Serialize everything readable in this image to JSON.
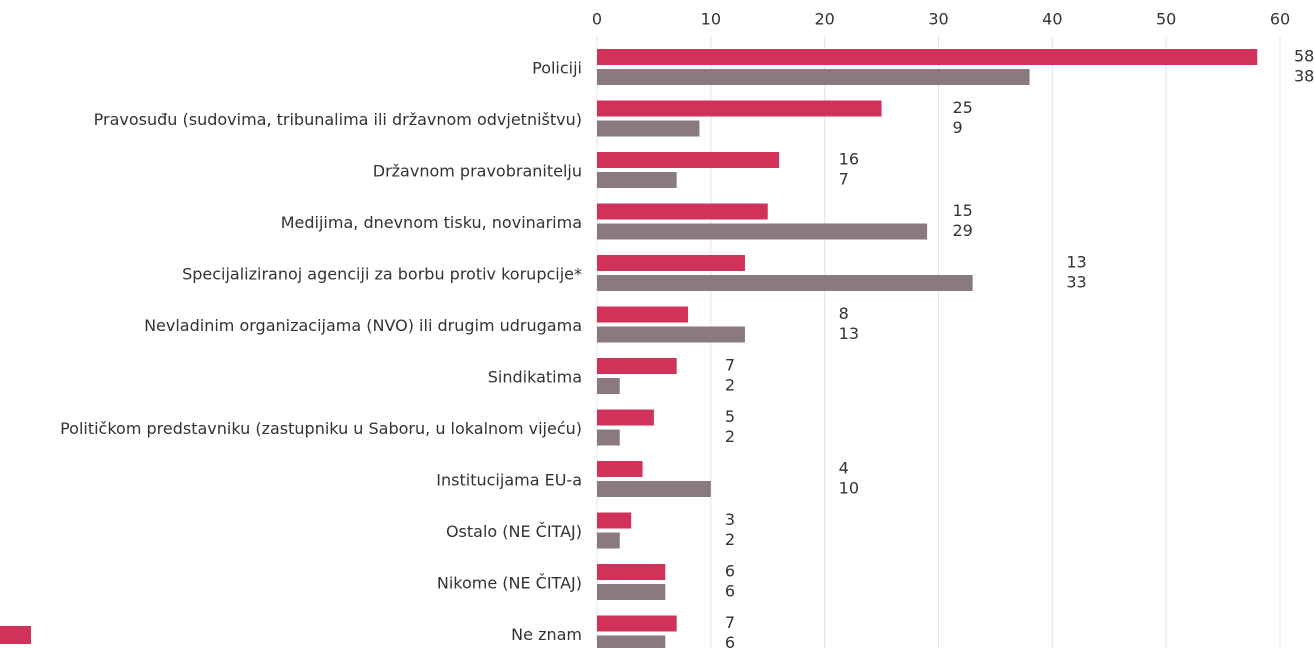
{
  "chart_data": {
    "type": "bar",
    "orientation": "horizontal",
    "categories": [
      "Policiji",
      "Pravosuđu (sudovima, tribunalima ili državnom odvjetništvu)",
      "Državnom pravobranitelju",
      "Medijima, dnevnom tisku, novinarima",
      "Specijaliziranoj agenciji za borbu protiv korupcije*",
      "Nevladinim organizacijama (NVO) ili drugim udrugama",
      "Sindikatima",
      "Političkom predstavniku (zastupniku u Saboru, u lokalnom vijeću)",
      "Institucijama EU-a",
      "Ostalo (NE ČITAJ)",
      "Nikome (NE ČITAJ)",
      "Ne znam"
    ],
    "series": [
      {
        "color": "#d0325a",
        "values": [
          58,
          25,
          16,
          15,
          13,
          8,
          7,
          5,
          4,
          3,
          6,
          7
        ]
      },
      {
        "color": "#8a7a7e",
        "values": [
          38,
          9,
          7,
          29,
          33,
          13,
          2,
          2,
          10,
          2,
          6,
          6
        ]
      }
    ],
    "xlim": [
      0,
      60
    ],
    "xticks": [
      0,
      10,
      20,
      30,
      40,
      50,
      60
    ],
    "grid": true
  }
}
